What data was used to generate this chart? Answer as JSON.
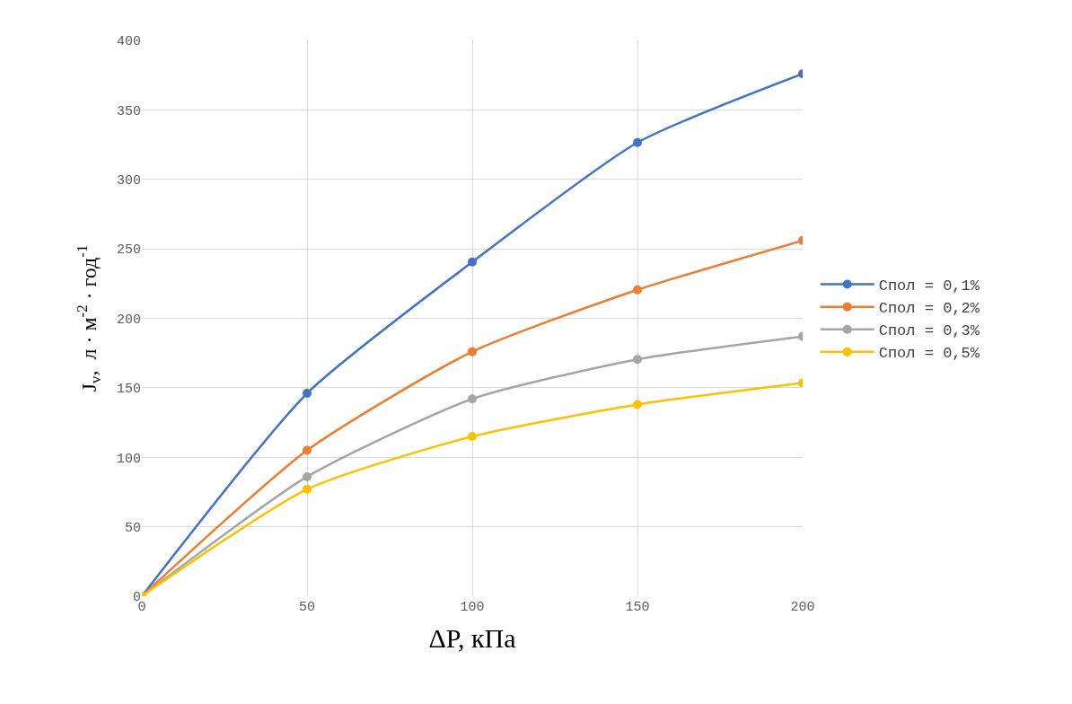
{
  "chart_data": {
    "type": "line",
    "xlabel": "ΔP, кПа",
    "ylabel": "J$_{v}$,  л · м$^{-2}$ · год$^{-1}$",
    "x": [
      0,
      50,
      100,
      150,
      200
    ],
    "series": [
      {
        "name": "Спол = 0,1%",
        "color": "#4472c4",
        "values": [
          0,
          146,
          240.5,
          326.5,
          376
        ]
      },
      {
        "name": "Спол = 0,2%",
        "color": "#ed7d31",
        "values": [
          0,
          105,
          176,
          220.5,
          256
        ]
      },
      {
        "name": "Спол = 0,3%",
        "color": "#a5a5a5",
        "values": [
          0,
          86,
          142,
          170.5,
          187
        ]
      },
      {
        "name": "Спол = 0,5%",
        "color": "#ffc000",
        "values": [
          0,
          77,
          115,
          138,
          153.5
        ]
      }
    ],
    "xlim": [
      0,
      200
    ],
    "xticks": [
      0,
      50,
      100,
      150,
      200
    ],
    "ylim": [
      0,
      400
    ],
    "yticks": [
      0,
      50,
      100,
      150,
      200,
      250,
      300,
      350,
      400
    ],
    "grid": true,
    "legend": "right",
    "marker": "circle",
    "line_style": "solid"
  }
}
